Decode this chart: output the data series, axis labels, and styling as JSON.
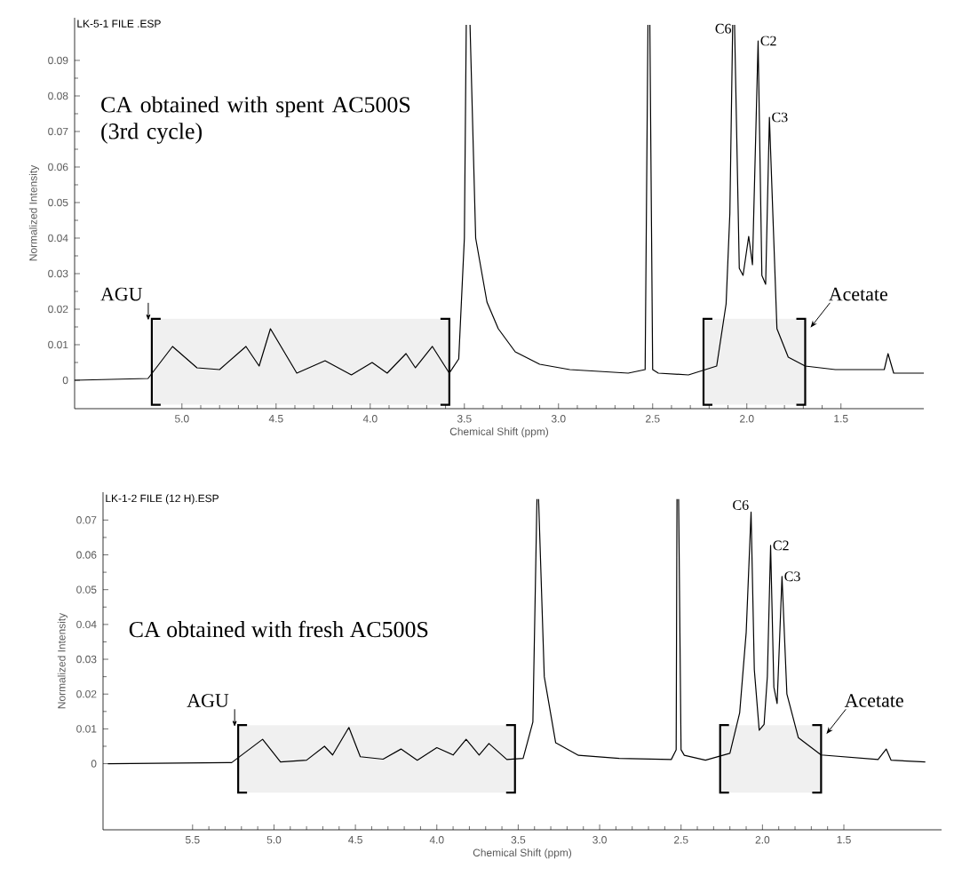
{
  "chart_data": [
    {
      "type": "line",
      "title": "LK-5-1 FILE .ESP",
      "xlabel": "Chemical Shift (ppm)",
      "ylabel": "Normalized Intensity",
      "marker": "none",
      "x": [
        5.57,
        5.18,
        5.05,
        4.92,
        4.8,
        4.66,
        4.59,
        4.53,
        4.39,
        4.24,
        4.1,
        3.99,
        3.91,
        3.81,
        3.76,
        3.67,
        3.58,
        3.53,
        3.5,
        3.49,
        3.48,
        3.47,
        3.44,
        3.38,
        3.32,
        3.23,
        3.1,
        2.94,
        2.63,
        2.54,
        2.525,
        2.52,
        2.515,
        2.5,
        2.47,
        2.31,
        2.16,
        2.11,
        2.09,
        2.075,
        2.07,
        2.065,
        2.04,
        2.02,
        1.99,
        1.97,
        1.94,
        1.92,
        1.9,
        1.88,
        1.84,
        1.78,
        1.69,
        1.53,
        1.27,
        1.25,
        1.22,
        1.06
      ],
      "series": [
        {
          "color": "#000000",
          "values": [
            0,
            0.0005,
            0.0095,
            0.0035,
            0.003,
            0.0095,
            0.004,
            0.0145,
            0.002,
            0.0055,
            0.0015,
            0.005,
            0.002,
            0.0075,
            0.0035,
            0.0095,
            0.002,
            0.006,
            0.04,
            0.1,
            null,
            0.1,
            0.04,
            0.022,
            0.0145,
            0.008,
            0.0045,
            0.003,
            0.002,
            0.003,
            0.1,
            null,
            0.1,
            0.003,
            0.002,
            0.0015,
            0.004,
            0.0215,
            0.047,
            0.1,
            null,
            0.1,
            0.0315,
            0.0295,
            0.0405,
            0.0325,
            0.0955,
            0.0295,
            0.027,
            0.074,
            0.0145,
            0.0065,
            0.004,
            0.003,
            0.003,
            0.0075,
            0.002,
            0.002
          ]
        }
      ],
      "xlim": [
        5.57,
        1.06
      ],
      "xticks": [
        {
          "value": 5,
          "label": "5.0"
        },
        {
          "value": 4.5,
          "label": "4.5"
        },
        {
          "value": 4,
          "label": "4.0"
        },
        {
          "value": 3.5,
          "label": "3.5"
        },
        {
          "value": 3,
          "label": "3.0"
        },
        {
          "value": 2.5,
          "label": "2.5"
        },
        {
          "value": 2,
          "label": "2.0"
        },
        {
          "value": 1.5,
          "label": "1.5"
        }
      ],
      "ylim": [
        -0.008,
        0.102
      ],
      "yticks": [
        0,
        0.01,
        0.02,
        0.03,
        0.04,
        0.05,
        0.06,
        0.07,
        0.08,
        0.09
      ],
      "bands": [
        {
          "axis": "x",
          "from": 5.16,
          "to": 3.58,
          "label": "AGU"
        },
        {
          "axis": "x",
          "from": 2.23,
          "to": 1.69,
          "label": "Acetate"
        }
      ],
      "annotations": [
        "CA obtained with spent AC500S (3rd cycle)",
        {
          "text": "C6",
          "x": 2.07,
          "y": 0.097
        },
        {
          "text": "C2",
          "x": 1.94,
          "y": 0.0955
        },
        {
          "text": "C3",
          "x": 1.88,
          "y": 0.074
        }
      ]
    },
    {
      "type": "line",
      "title": "LK-1-2 FILE (12 H).ESP",
      "xlabel": "Chemical Shift (ppm)",
      "ylabel": "Normalized Intensity",
      "marker": "none",
      "x": [
        6.02,
        5.26,
        5.07,
        4.96,
        4.8,
        4.69,
        4.64,
        4.54,
        4.47,
        4.33,
        4.22,
        4.12,
        4.0,
        3.9,
        3.82,
        3.74,
        3.68,
        3.57,
        3.47,
        3.41,
        3.385,
        3.38,
        3.375,
        3.34,
        3.27,
        3.13,
        2.88,
        2.56,
        2.53,
        2.525,
        2.52,
        2.515,
        2.5,
        2.48,
        2.35,
        2.2,
        2.14,
        2.1,
        2.07,
        2.05,
        2.02,
        1.99,
        1.97,
        1.95,
        1.93,
        1.91,
        1.88,
        1.85,
        1.78,
        1.64,
        1.29,
        1.24,
        1.21,
        1.0
      ],
      "series": [
        {
          "color": "#000000",
          "values": [
            0,
            0.0003,
            0.007,
            0.0005,
            0.001,
            0.005,
            0.0025,
            0.0104,
            0.002,
            0.0013,
            0.0042,
            0.001,
            0.0046,
            0.0025,
            0.007,
            0.0025,
            0.0058,
            0.0012,
            0.0015,
            0.012,
            0.076,
            null,
            0.076,
            0.025,
            0.006,
            0.0024,
            0.0015,
            0.0012,
            0.004,
            0.076,
            null,
            0.076,
            0.004,
            0.0024,
            0.001,
            0.003,
            0.0146,
            0.0377,
            0.0723,
            0.027,
            0.0096,
            0.0113,
            0.025,
            0.0627,
            0.022,
            0.0173,
            0.0538,
            0.02,
            0.0075,
            0.0025,
            0.0012,
            0.0042,
            0.001,
            0.0005
          ]
        }
      ],
      "xlim": [
        6.05,
        0.9
      ],
      "xticks": [
        {
          "value": 5.5,
          "label": "5.5"
        },
        {
          "value": 5,
          "label": "5.0"
        },
        {
          "value": 4.5,
          "label": "4.5"
        },
        {
          "value": 4,
          "label": "4.0"
        },
        {
          "value": 3.5,
          "label": "3.5"
        },
        {
          "value": 3,
          "label": "3.0"
        },
        {
          "value": 2.5,
          "label": "2.5"
        },
        {
          "value": 2,
          "label": "2.0"
        },
        {
          "value": 1.5,
          "label": "1.5"
        }
      ],
      "ylim": [
        -0.019,
        0.078
      ],
      "yticks": [
        0,
        0.01,
        0.02,
        0.03,
        0.04,
        0.05,
        0.06,
        0.07
      ],
      "bands": [
        {
          "axis": "x",
          "from": 5.22,
          "to": 3.52,
          "label": "AGU"
        },
        {
          "axis": "x",
          "from": 2.26,
          "to": 1.64,
          "label": "Acetate"
        }
      ],
      "annotations": [
        "CA obtained with fresh AC500S",
        {
          "text": "C6",
          "x": 2.07,
          "y": 0.0723
        },
        {
          "text": "C2",
          "x": 1.95,
          "y": 0.0627
        },
        {
          "text": "C3",
          "x": 1.88,
          "y": 0.0538
        }
      ]
    }
  ]
}
